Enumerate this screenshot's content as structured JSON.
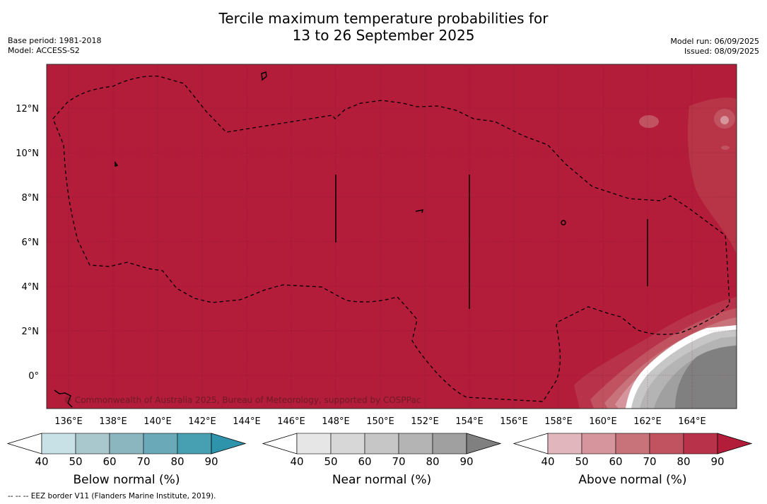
{
  "header": {
    "title_line1": "Tercile maximum temperature probabilities for",
    "title_line2": "13 to 26 September 2025",
    "base_period": "Base period: 1981-2018",
    "model": "Model: ACCESS-S2",
    "model_run": "Model run: 06/09/2025",
    "issued": "Issued: 08/09/2025"
  },
  "map": {
    "x_ticks": [
      "136°E",
      "138°E",
      "140°E",
      "142°E",
      "144°E",
      "146°E",
      "148°E",
      "150°E",
      "152°E",
      "154°E",
      "156°E",
      "158°E",
      "160°E",
      "162°E",
      "164°E"
    ],
    "y_ticks": [
      "12°N",
      "10°N",
      "8°N",
      "6°N",
      "4°N",
      "2°N",
      "0°"
    ],
    "copyright": "© Commonwealth of Australia 2025, Bureau of Meteorology, supported by COSPPac",
    "colors": {
      "above_90": "#b31d3a",
      "near_80plus": "#808080",
      "near_70": "#a0a0a0"
    }
  },
  "colorbars": [
    {
      "label": "Below normal (%)",
      "ticks": [
        "40",
        "50",
        "60",
        "70",
        "80",
        "90"
      ],
      "colors": [
        "#ffffff",
        "#c8e1e7",
        "#a8c8cd",
        "#8bb6c0",
        "#6aaab8",
        "#47a0b2",
        "#2e94ab"
      ]
    },
    {
      "label": "Near normal (%)",
      "ticks": [
        "40",
        "50",
        "60",
        "70",
        "80",
        "90"
      ],
      "colors": [
        "#ffffff",
        "#e6e6e6",
        "#d7d7d7",
        "#c6c6c6",
        "#b4b4b4",
        "#a0a0a0",
        "#808080"
      ]
    },
    {
      "label": "Above normal (%)",
      "ticks": [
        "40",
        "50",
        "60",
        "70",
        "80",
        "90"
      ],
      "colors": [
        "#ffffff",
        "#e2b6bd",
        "#d6949c",
        "#c87279",
        "#c0535f",
        "#b8334a",
        "#b31d3a"
      ]
    }
  ],
  "footnote": "--  --  -- EEZ border V11 (Flanders Marine Institute, 2019)."
}
